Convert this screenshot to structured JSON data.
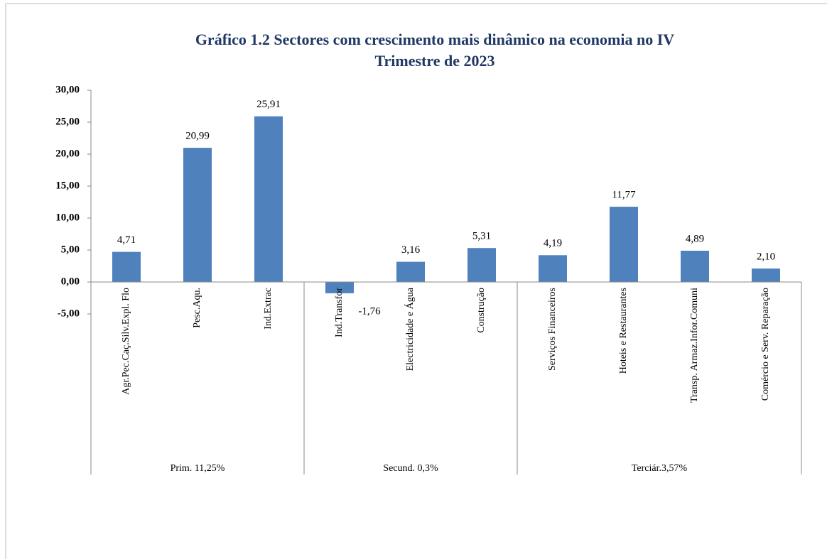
{
  "chart_data": {
    "type": "bar",
    "title": [
      "Gráfico 1.2   Sectores com crescimento mais dinâmico na economia no IV",
      "Trimestre de 2023"
    ],
    "color": "#4f81bd",
    "ylim": [
      -5,
      30
    ],
    "yticks": [
      {
        "value": -5,
        "label": "-5,00"
      },
      {
        "value": 0,
        "label": "0,00"
      },
      {
        "value": 5,
        "label": "5,00"
      },
      {
        "value": 10,
        "label": "10,00"
      },
      {
        "value": 15,
        "label": "15,00"
      },
      {
        "value": 20,
        "label": "20,00"
      },
      {
        "value": 25,
        "label": "25,00"
      },
      {
        "value": 30,
        "label": "30,00"
      }
    ],
    "groups": [
      {
        "label": "Prim. 11,25%",
        "categories": [
          "Agr.Pec.Caç.Silv.Expl. Flo",
          "Pesc.Aqu.",
          "Ind.Extrac"
        ],
        "values": [
          4.71,
          20.99,
          25.91
        ],
        "value_labels": [
          "4,71",
          "20,99",
          "25,91"
        ]
      },
      {
        "label": "Secund. 0,3%",
        "categories": [
          "Ind.Transfor",
          "Electricidade e Água",
          "Construção"
        ],
        "values": [
          -1.76,
          3.16,
          5.31
        ],
        "value_labels": [
          "-1,76",
          "3,16",
          "5,31"
        ]
      },
      {
        "label": "Terciár.3,57%",
        "categories": [
          "Serviços Financeiros",
          "Hoteis e Restaurantes",
          "Transp. Armaz.Infor.Comuni",
          "Comércio e Serv. Reparação"
        ],
        "values": [
          4.19,
          11.77,
          4.89,
          2.1
        ],
        "value_labels": [
          "4,19",
          "11,77",
          "4,89",
          "2,10"
        ]
      }
    ]
  }
}
